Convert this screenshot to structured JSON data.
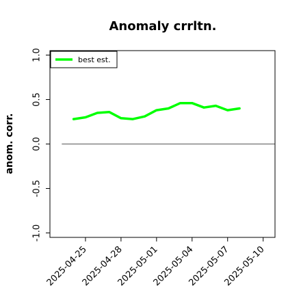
{
  "chart_data": {
    "type": "line",
    "title": "Anomaly crrltn.",
    "xlabel": "",
    "ylabel": "anom. corr.",
    "ylim": [
      -1.05,
      1.05
    ],
    "yticks": [
      -1.0,
      -0.5,
      0.0,
      0.5,
      1.0
    ],
    "ytick_labels": [
      "-1.0",
      "-0.5",
      "0.0",
      "0.5",
      "1.0"
    ],
    "xlim": [
      "2025-04-22",
      "2025-05-11"
    ],
    "xticks": [
      "2025-04-25",
      "2025-04-28",
      "2025-05-01",
      "2025-05-04",
      "2025-05-07",
      "2025-05-10"
    ],
    "xtick_labels": [
      "2025-04-25",
      "2025-04-28",
      "2025-05-01",
      "2025-05-04",
      "2025-05-07",
      "2025-05-10"
    ],
    "legend_position": "top-left",
    "grid": false,
    "series": [
      {
        "name": "best est.",
        "color": "#00ff00",
        "x": [
          "2025-04-24",
          "2025-04-25",
          "2025-04-26",
          "2025-04-27",
          "2025-04-28",
          "2025-04-29",
          "2025-04-30",
          "2025-05-01",
          "2025-05-02",
          "2025-05-03",
          "2025-05-04",
          "2025-05-05",
          "2025-05-06",
          "2025-05-07",
          "2025-05-08"
        ],
        "values": [
          0.28,
          0.3,
          0.35,
          0.36,
          0.29,
          0.28,
          0.31,
          0.38,
          0.4,
          0.46,
          0.46,
          0.41,
          0.43,
          0.38,
          0.4
        ]
      }
    ],
    "reference_line": {
      "y": 0.0,
      "x_start": "2025-04-23",
      "x_end": "2025-05-11",
      "color": "#555555"
    }
  }
}
